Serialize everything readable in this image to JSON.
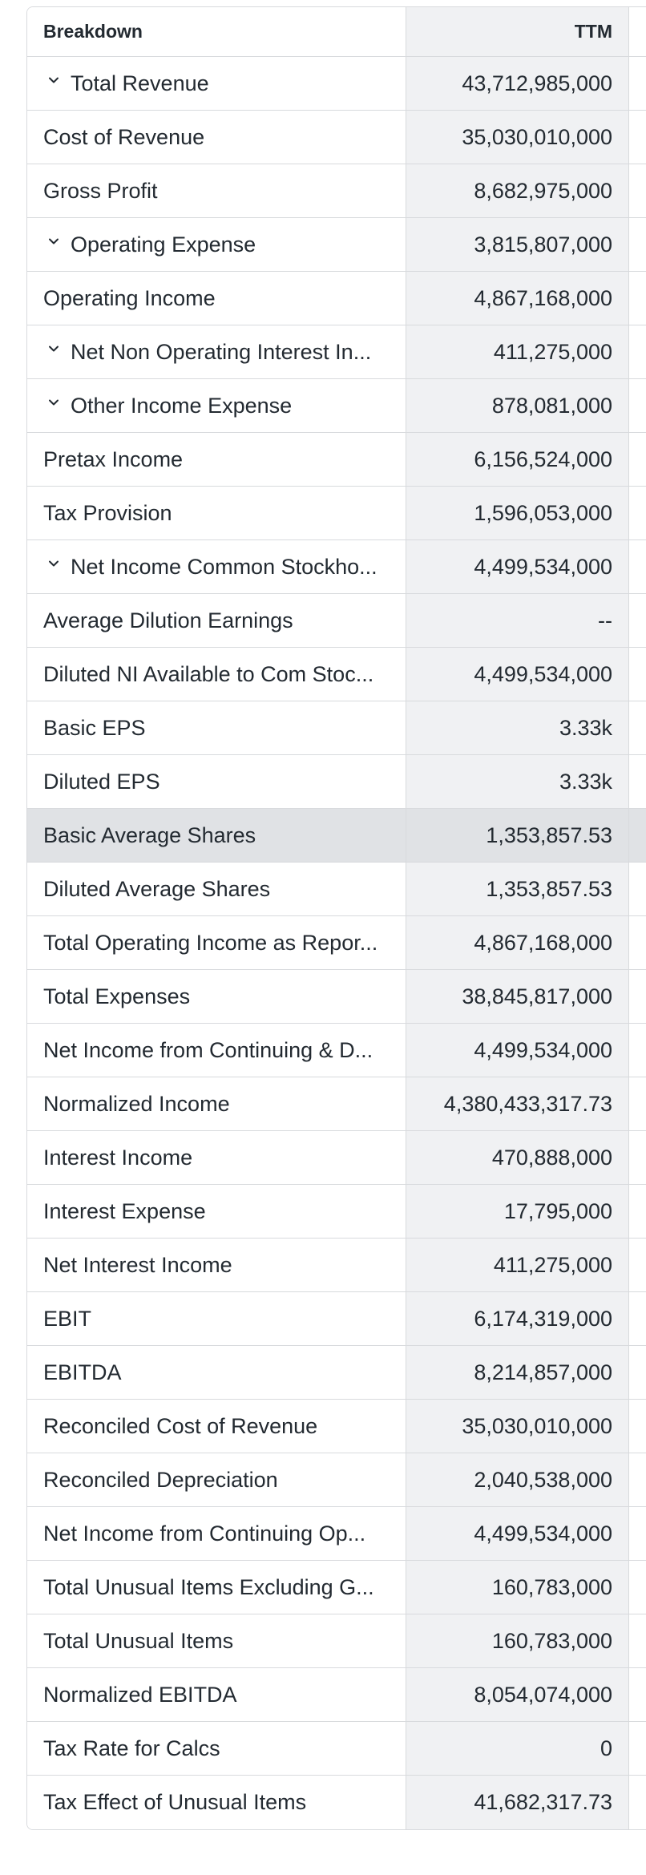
{
  "header": {
    "breakdown_label": "Breakdown",
    "ttm_label": "TTM"
  },
  "rows": [
    {
      "label": "Total Revenue",
      "value": "43,712,985,000",
      "expandable": true
    },
    {
      "label": "Cost of Revenue",
      "value": "35,030,010,000",
      "expandable": false
    },
    {
      "label": "Gross Profit",
      "value": "8,682,975,000",
      "expandable": false
    },
    {
      "label": "Operating Expense",
      "value": "3,815,807,000",
      "expandable": true
    },
    {
      "label": "Operating Income",
      "value": "4,867,168,000",
      "expandable": false
    },
    {
      "label": "Net Non Operating Interest In...",
      "value": "411,275,000",
      "expandable": true
    },
    {
      "label": "Other Income Expense",
      "value": "878,081,000",
      "expandable": true
    },
    {
      "label": "Pretax Income",
      "value": "6,156,524,000",
      "expandable": false
    },
    {
      "label": "Tax Provision",
      "value": "1,596,053,000",
      "expandable": false
    },
    {
      "label": "Net Income Common Stockho...",
      "value": "4,499,534,000",
      "expandable": true
    },
    {
      "label": "Average Dilution Earnings",
      "value": "--",
      "expandable": false
    },
    {
      "label": "Diluted NI Available to Com Stoc...",
      "value": "4,499,534,000",
      "expandable": false
    },
    {
      "label": "Basic EPS",
      "value": "3.33k",
      "expandable": false
    },
    {
      "label": "Diluted EPS",
      "value": "3.33k",
      "expandable": false
    },
    {
      "label": "Basic Average Shares",
      "value": "1,353,857.53",
      "expandable": false,
      "highlighted": true
    },
    {
      "label": "Diluted Average Shares",
      "value": "1,353,857.53",
      "expandable": false
    },
    {
      "label": "Total Operating Income as Repor...",
      "value": "4,867,168,000",
      "expandable": false
    },
    {
      "label": "Total Expenses",
      "value": "38,845,817,000",
      "expandable": false
    },
    {
      "label": "Net Income from Continuing & D...",
      "value": "4,499,534,000",
      "expandable": false
    },
    {
      "label": "Normalized Income",
      "value": "4,380,433,317.73",
      "expandable": false
    },
    {
      "label": "Interest Income",
      "value": "470,888,000",
      "expandable": false
    },
    {
      "label": "Interest Expense",
      "value": "17,795,000",
      "expandable": false
    },
    {
      "label": "Net Interest Income",
      "value": "411,275,000",
      "expandable": false
    },
    {
      "label": "EBIT",
      "value": "6,174,319,000",
      "expandable": false
    },
    {
      "label": "EBITDA",
      "value": "8,214,857,000",
      "expandable": false
    },
    {
      "label": "Reconciled Cost of Revenue",
      "value": "35,030,010,000",
      "expandable": false
    },
    {
      "label": "Reconciled Depreciation",
      "value": "2,040,538,000",
      "expandable": false
    },
    {
      "label": "Net Income from Continuing Op...",
      "value": "4,499,534,000",
      "expandable": false
    },
    {
      "label": "Total Unusual Items Excluding G...",
      "value": "160,783,000",
      "expandable": false
    },
    {
      "label": "Total Unusual Items",
      "value": "160,783,000",
      "expandable": false
    },
    {
      "label": "Normalized EBITDA",
      "value": "8,054,074,000",
      "expandable": false
    },
    {
      "label": "Tax Rate for Calcs",
      "value": "0",
      "expandable": false
    },
    {
      "label": "Tax Effect of Unusual Items",
      "value": "41,682,317.73",
      "expandable": false
    }
  ]
}
